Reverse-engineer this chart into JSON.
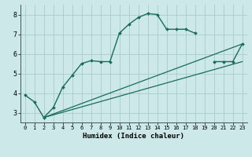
{
  "title": "",
  "xlabel": "Humidex (Indice chaleur)",
  "ylabel": "",
  "background_color": "#cce8e8",
  "grid_color": "#aacccc",
  "line_color": "#1a6b5a",
  "xlim": [
    -0.5,
    23.5
  ],
  "ylim": [
    2.5,
    8.5
  ],
  "xticks": [
    0,
    1,
    2,
    3,
    4,
    5,
    6,
    7,
    8,
    9,
    10,
    11,
    12,
    13,
    14,
    15,
    16,
    17,
    18,
    19,
    20,
    21,
    22,
    23
  ],
  "yticks": [
    3,
    4,
    5,
    6,
    7,
    8
  ],
  "series": [
    {
      "x": [
        0,
        1,
        2,
        3,
        4,
        5,
        6,
        7,
        8,
        9,
        10,
        11,
        12,
        13,
        14,
        15,
        16,
        17,
        18
      ],
      "y": [
        3.9,
        3.55,
        2.75,
        3.25,
        4.3,
        4.9,
        5.5,
        5.65,
        5.6,
        5.6,
        7.05,
        7.5,
        7.85,
        8.05,
        8.0,
        7.25,
        7.25,
        7.25,
        7.05
      ],
      "marker": "D",
      "markersize": 2,
      "linewidth": 1.0,
      "has_marker": true
    },
    {
      "x": [
        20,
        21,
        22,
        23
      ],
      "y": [
        5.6,
        5.6,
        5.6,
        6.5
      ],
      "marker": "D",
      "markersize": 2,
      "linewidth": 1.0,
      "has_marker": true
    },
    {
      "x": [
        2,
        23
      ],
      "y": [
        2.75,
        6.5
      ],
      "marker": null,
      "markersize": 0,
      "linewidth": 0.9,
      "has_marker": false
    },
    {
      "x": [
        2,
        23
      ],
      "y": [
        2.75,
        5.6
      ],
      "marker": null,
      "markersize": 0,
      "linewidth": 0.9,
      "has_marker": false
    }
  ]
}
